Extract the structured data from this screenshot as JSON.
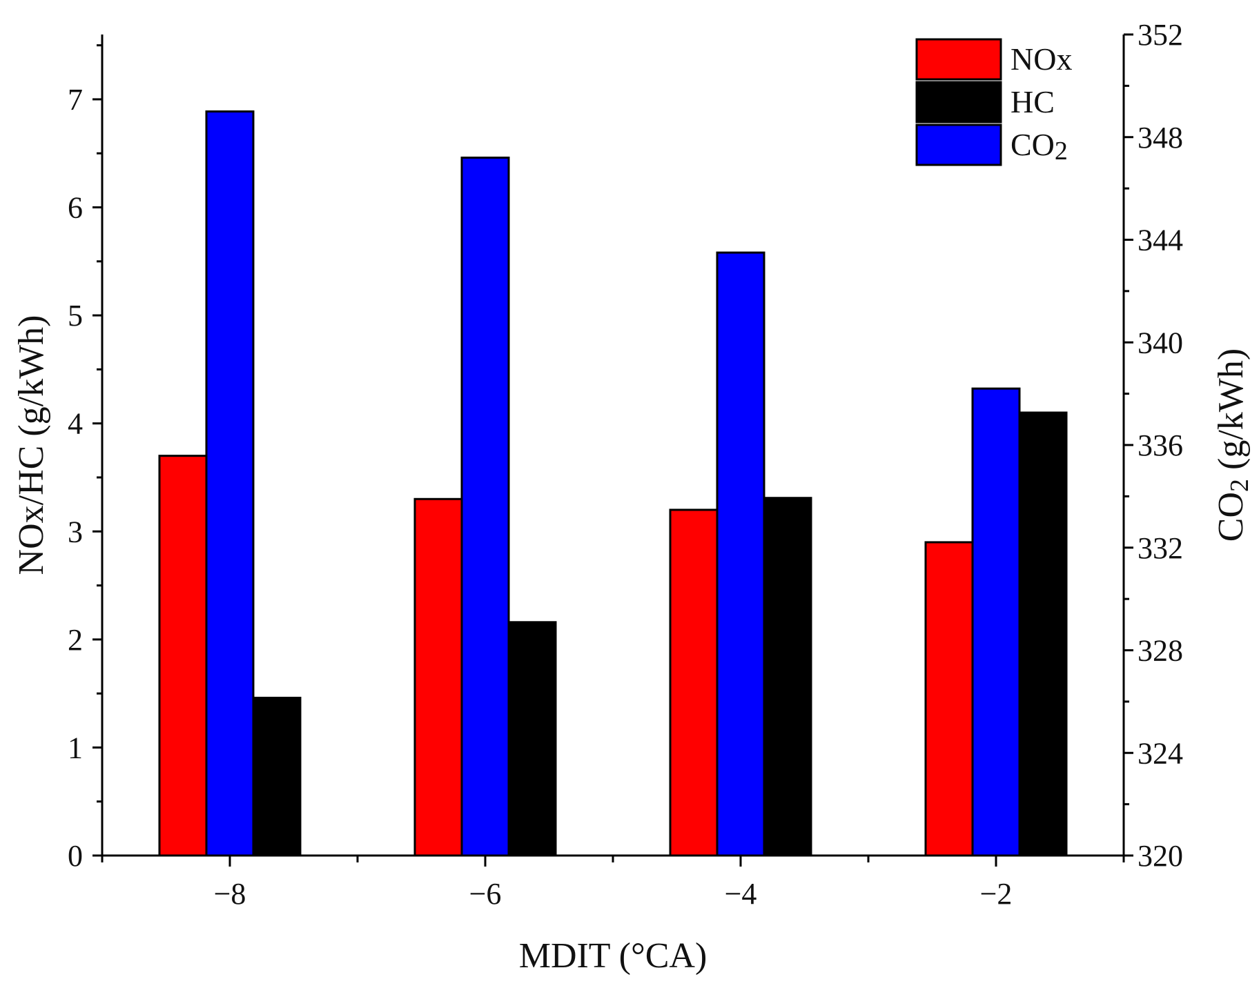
{
  "chart_data": {
    "type": "bar",
    "title": "",
    "xlabel": "MDIT (°CA)",
    "ylabel_left": "NOx/HC (g/kWh)",
    "ylabel_right_main": "CO",
    "ylabel_right_sub": "2",
    "ylabel_right_units": " (g/kWh)",
    "categories": [
      "−8",
      "−6",
      "−4",
      "−2"
    ],
    "ylim_left": [
      0,
      7.6
    ],
    "yticks_left": [
      "0",
      "1",
      "2",
      "3",
      "4",
      "5",
      "6",
      "7"
    ],
    "ylim_right": [
      320,
      352
    ],
    "yticks_right": [
      "320",
      "324",
      "328",
      "332",
      "336",
      "340",
      "344",
      "348",
      "352"
    ],
    "legend_position": "top-right",
    "series": [
      {
        "name": "NOx",
        "name_main": "NOx",
        "name_sub": "",
        "axis": "left",
        "color": "#ff0000",
        "values": [
          3.7,
          3.3,
          3.2,
          2.9
        ]
      },
      {
        "name": "CO2",
        "name_main": "CO",
        "name_sub": "2",
        "axis": "right",
        "color": "#0000ff",
        "values": [
          349.0,
          347.2,
          343.5,
          338.2
        ]
      },
      {
        "name": "HC",
        "name_main": "HC",
        "name_sub": "",
        "axis": "left",
        "color": "#000000",
        "values": [
          1.46,
          2.16,
          3.31,
          4.1
        ]
      }
    ],
    "legend_order": [
      "NOx",
      "HC",
      "CO2"
    ]
  }
}
